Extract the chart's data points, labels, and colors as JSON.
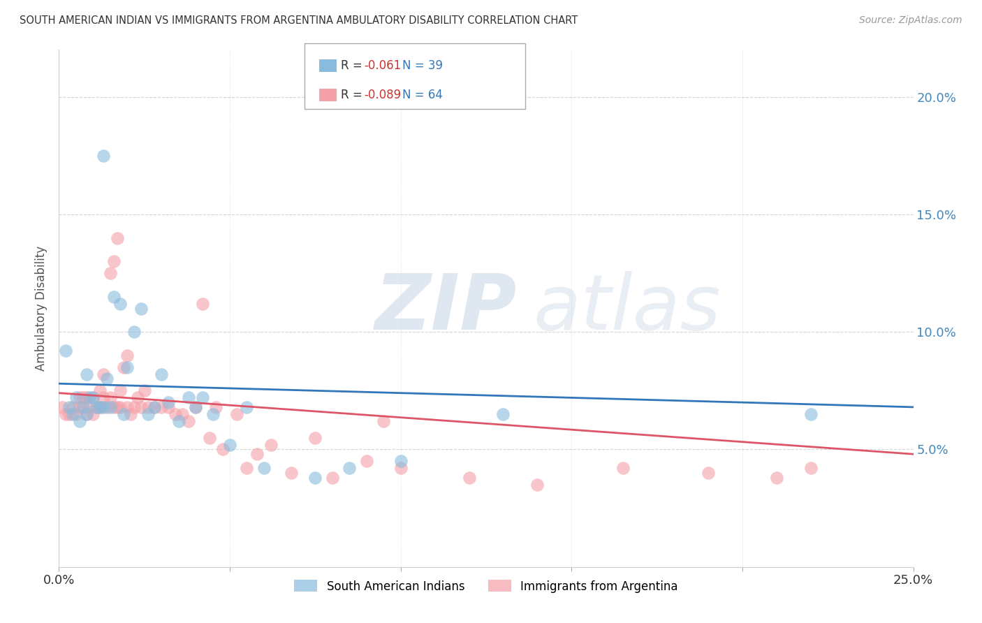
{
  "title": "SOUTH AMERICAN INDIAN VS IMMIGRANTS FROM ARGENTINA AMBULATORY DISABILITY CORRELATION CHART",
  "source": "Source: ZipAtlas.com",
  "ylabel": "Ambulatory Disability",
  "xlim": [
    0.0,
    0.25
  ],
  "ylim": [
    0.0,
    0.22
  ],
  "ytick_positions": [
    0.05,
    0.1,
    0.15,
    0.2
  ],
  "ytick_labels": [
    "5.0%",
    "10.0%",
    "15.0%",
    "20.0%"
  ],
  "xtick_positions": [
    0.0,
    0.05,
    0.1,
    0.15,
    0.2,
    0.25
  ],
  "xtick_labels_show": {
    "0.0": "0.0%",
    "0.25": "25.0%"
  },
  "blue_color": "#88bbdd",
  "pink_color": "#f4a0a8",
  "blue_line_color": "#3377bb",
  "pink_line_color": "#dd5566",
  "legend_blue_r": "-0.061",
  "legend_blue_n": "39",
  "legend_pink_r": "-0.089",
  "legend_pink_n": "64",
  "blue_scatter_x": [
    0.013,
    0.002,
    0.003,
    0.004,
    0.005,
    0.006,
    0.007,
    0.008,
    0.008,
    0.009,
    0.01,
    0.011,
    0.012,
    0.013,
    0.014,
    0.015,
    0.016,
    0.018,
    0.019,
    0.02,
    0.022,
    0.024,
    0.026,
    0.028,
    0.03,
    0.032,
    0.035,
    0.038,
    0.04,
    0.042,
    0.045,
    0.05,
    0.055,
    0.06,
    0.075,
    0.085,
    0.1,
    0.13,
    0.22
  ],
  "blue_scatter_y": [
    0.175,
    0.092,
    0.068,
    0.065,
    0.072,
    0.062,
    0.068,
    0.082,
    0.065,
    0.072,
    0.072,
    0.068,
    0.068,
    0.068,
    0.08,
    0.068,
    0.115,
    0.112,
    0.065,
    0.085,
    0.1,
    0.11,
    0.065,
    0.068,
    0.082,
    0.07,
    0.062,
    0.072,
    0.068,
    0.072,
    0.065,
    0.052,
    0.068,
    0.042,
    0.038,
    0.042,
    0.045,
    0.065,
    0.065
  ],
  "pink_scatter_x": [
    0.001,
    0.002,
    0.003,
    0.004,
    0.005,
    0.006,
    0.006,
    0.007,
    0.007,
    0.008,
    0.008,
    0.009,
    0.01,
    0.01,
    0.011,
    0.012,
    0.012,
    0.013,
    0.013,
    0.014,
    0.015,
    0.015,
    0.016,
    0.016,
    0.017,
    0.017,
    0.018,
    0.018,
    0.019,
    0.02,
    0.02,
    0.021,
    0.022,
    0.023,
    0.024,
    0.025,
    0.026,
    0.028,
    0.03,
    0.032,
    0.034,
    0.036,
    0.038,
    0.04,
    0.042,
    0.044,
    0.046,
    0.048,
    0.052,
    0.055,
    0.058,
    0.062,
    0.068,
    0.075,
    0.08,
    0.09,
    0.095,
    0.1,
    0.12,
    0.14,
    0.165,
    0.19,
    0.21,
    0.22
  ],
  "pink_scatter_y": [
    0.068,
    0.065,
    0.065,
    0.068,
    0.065,
    0.068,
    0.072,
    0.068,
    0.072,
    0.065,
    0.072,
    0.068,
    0.065,
    0.072,
    0.068,
    0.068,
    0.075,
    0.072,
    0.082,
    0.068,
    0.125,
    0.072,
    0.068,
    0.13,
    0.14,
    0.068,
    0.068,
    0.075,
    0.085,
    0.068,
    0.09,
    0.065,
    0.068,
    0.072,
    0.068,
    0.075,
    0.068,
    0.068,
    0.068,
    0.068,
    0.065,
    0.065,
    0.062,
    0.068,
    0.112,
    0.055,
    0.068,
    0.05,
    0.065,
    0.042,
    0.048,
    0.052,
    0.04,
    0.055,
    0.038,
    0.045,
    0.062,
    0.042,
    0.038,
    0.035,
    0.042,
    0.04,
    0.038,
    0.042
  ],
  "blue_line_x0": 0.0,
  "blue_line_x1": 0.25,
  "blue_line_y0": 0.078,
  "blue_line_y1": 0.068,
  "pink_line_x0": 0.0,
  "pink_line_x1": 0.25,
  "pink_line_y0": 0.074,
  "pink_line_y1": 0.048,
  "background_color": "#ffffff",
  "grid_color": "#cccccc",
  "title_color": "#333333",
  "ylabel_color": "#555555",
  "right_tick_color": "#4488bb",
  "bottom_tick_color": "#333333"
}
